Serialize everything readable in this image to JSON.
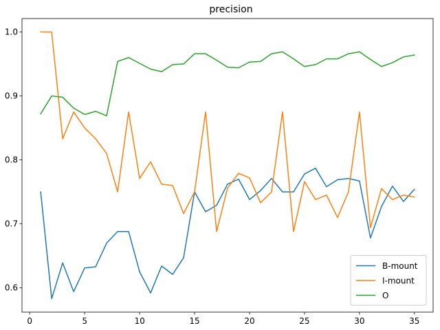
{
  "chart_data": {
    "type": "line",
    "title": "precision",
    "xlabel": "",
    "ylabel": "",
    "xlim": [
      -0.7,
      36.7
    ],
    "ylim": [
      0.562,
      1.021
    ],
    "xticks": [
      0,
      5,
      10,
      15,
      20,
      25,
      30,
      35
    ],
    "yticks": [
      0.6,
      0.7,
      0.8,
      0.9,
      1.0
    ],
    "ytick_labels": [
      "0.6",
      "0.7",
      "0.8",
      "0.9",
      "1.0"
    ],
    "grid": false,
    "legend_position": "lower-right",
    "x": [
      1,
      2,
      3,
      4,
      5,
      6,
      7,
      8,
      9,
      10,
      11,
      12,
      13,
      14,
      15,
      16,
      17,
      18,
      19,
      20,
      21,
      22,
      23,
      24,
      25,
      26,
      27,
      28,
      29,
      30,
      31,
      32,
      33,
      34,
      35
    ],
    "series": [
      {
        "name": "B-mount",
        "color": "#1f77b4",
        "values": [
          0.75,
          0.583,
          0.639,
          0.594,
          0.631,
          0.633,
          0.67,
          0.688,
          0.688,
          0.625,
          0.592,
          0.634,
          0.621,
          0.647,
          0.75,
          0.719,
          0.729,
          0.762,
          0.77,
          0.738,
          0.752,
          0.771,
          0.75,
          0.75,
          0.778,
          0.787,
          0.758,
          0.769,
          0.771,
          0.767,
          0.678,
          0.727,
          0.759,
          0.735,
          0.754
        ]
      },
      {
        "name": "I-mount",
        "color": "#ff7f0e",
        "values": [
          1.0,
          1.0,
          0.833,
          0.875,
          0.85,
          0.833,
          0.81,
          0.75,
          0.875,
          0.771,
          0.797,
          0.762,
          0.76,
          0.716,
          0.75,
          0.875,
          0.688,
          0.756,
          0.779,
          0.772,
          0.733,
          0.75,
          0.875,
          0.688,
          0.766,
          0.738,
          0.745,
          0.71,
          0.75,
          0.875,
          0.694,
          0.755,
          0.738,
          0.745,
          0.742
        ]
      },
      {
        "name": "O",
        "color": "#2ca02c",
        "values": [
          0.872,
          0.9,
          0.898,
          0.881,
          0.871,
          0.876,
          0.869,
          0.954,
          0.96,
          0.951,
          0.942,
          0.938,
          0.949,
          0.95,
          0.966,
          0.966,
          0.956,
          0.945,
          0.944,
          0.953,
          0.954,
          0.966,
          0.969,
          0.958,
          0.946,
          0.949,
          0.958,
          0.958,
          0.966,
          0.969,
          0.957,
          0.946,
          0.952,
          0.961,
          0.964
        ]
      }
    ]
  }
}
